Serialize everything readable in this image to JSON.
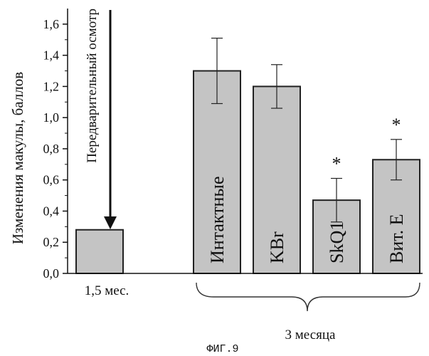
{
  "chart_data": {
    "type": "bar",
    "ylabel": "Изменения макулы, баллов",
    "ylim": [
      0,
      1.7
    ],
    "yticks": [
      "0,0",
      "0,2",
      "0,4",
      "0,6",
      "0,8",
      "1,0",
      "1,2",
      "1,4",
      "1,6"
    ],
    "bars": [
      {
        "label": "",
        "category": "1,5 мес.",
        "value": 0.28,
        "error": null,
        "significant": false
      },
      {
        "label": "Интактные",
        "category": "3 месяца",
        "value": 1.3,
        "error": 0.21,
        "significant": false
      },
      {
        "label": "KBr",
        "category": "3 месяца",
        "value": 1.2,
        "error": 0.14,
        "significant": false
      },
      {
        "label": "SkQ1",
        "category": "3 месяца",
        "value": 0.47,
        "error": 0.14,
        "significant": true
      },
      {
        "label": "Вит. Е",
        "category": "3 месяца",
        "value": 0.73,
        "error": 0.13,
        "significant": true
      }
    ],
    "annotation": "Передварительный осмотр",
    "significance_marker": "*",
    "group_labels": [
      "1,5 мес.",
      "3 месяца"
    ],
    "figure_caption": "ФИГ.9",
    "colors": {
      "bar_fill": "#c4c4c4",
      "bar_stroke": "#222222",
      "axis": "#111111"
    }
  }
}
